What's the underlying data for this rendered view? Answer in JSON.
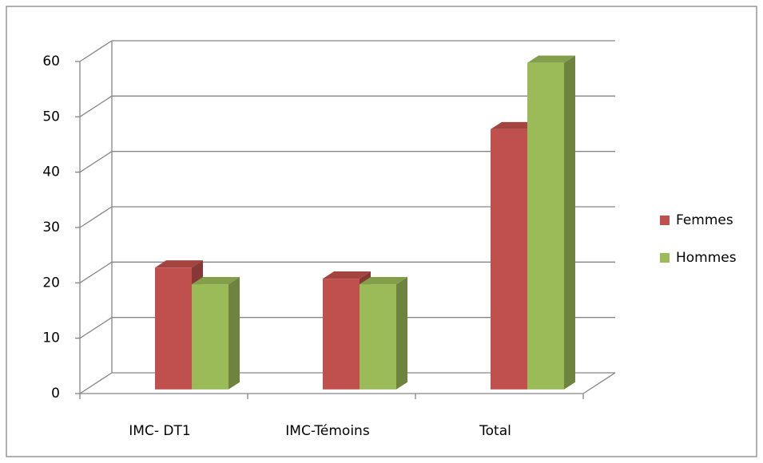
{
  "chart_data": {
    "type": "bar3d",
    "categories": [
      "IMC- DT1",
      "IMC-Témoins",
      "Total"
    ],
    "series": [
      {
        "name": "Femmes",
        "color": "#c0504d",
        "values": [
          22,
          20,
          47
        ]
      },
      {
        "name": "Hommes",
        "color": "#9bbb59",
        "values": [
          19,
          19,
          59
        ]
      }
    ],
    "ylim": [
      0,
      60
    ],
    "yticks": [
      0,
      10,
      20,
      30,
      40,
      50,
      60
    ],
    "grid": true,
    "legend": "right"
  }
}
